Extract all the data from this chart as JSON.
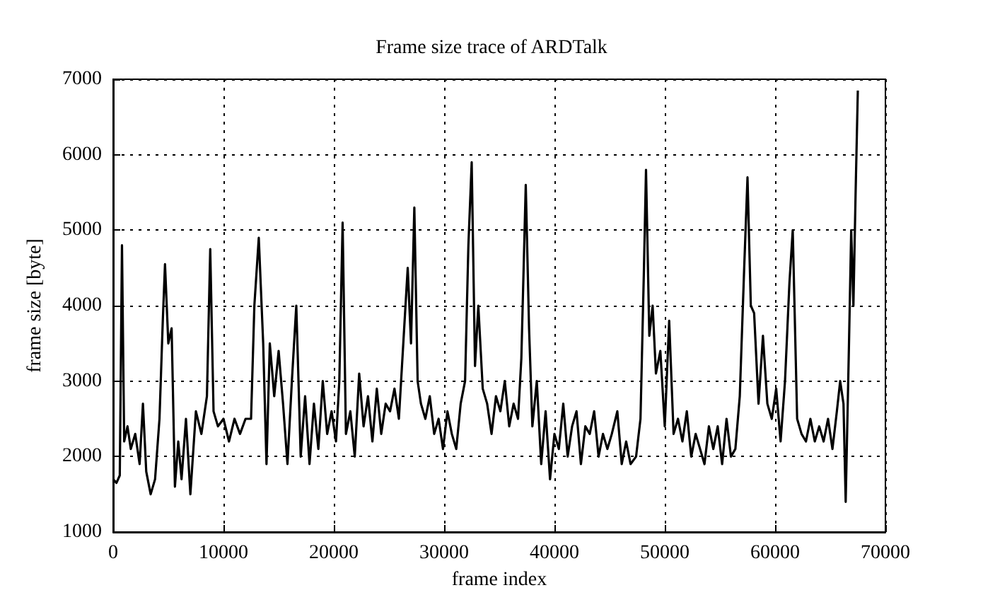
{
  "chart_data": {
    "type": "line",
    "title": "Frame size trace of ARDTalk",
    "xlabel": "frame index",
    "ylabel": "frame size [byte]",
    "xlim": [
      0,
      70000
    ],
    "xticks": [
      0,
      10000,
      20000,
      30000,
      40000,
      50000,
      60000,
      70000
    ],
    "ylim": [
      1000,
      7000
    ],
    "yticks": [
      1000,
      2000,
      3000,
      4000,
      5000,
      6000,
      7000
    ],
    "grid": true,
    "marker": "none",
    "line_style": "solid",
    "series": [
      {
        "color": "#000000",
        "x": [
          0,
          300,
          600,
          800,
          1000,
          1300,
          1600,
          2000,
          2400,
          2700,
          3000,
          3400,
          3800,
          4200,
          4500,
          4700,
          5000,
          5300,
          5600,
          5900,
          6200,
          6600,
          7000,
          7500,
          8000,
          8500,
          8800,
          9100,
          9500,
          10000,
          10500,
          11000,
          11500,
          12000,
          12500,
          12800,
          13200,
          13600,
          13900,
          14200,
          14600,
          15000,
          15400,
          15800,
          16200,
          16600,
          17000,
          17400,
          17800,
          18200,
          18600,
          19000,
          19400,
          19800,
          20200,
          20500,
          20800,
          21100,
          21500,
          21900,
          22300,
          22700,
          23100,
          23500,
          23900,
          24300,
          24700,
          25100,
          25500,
          25900,
          26300,
          26700,
          27000,
          27300,
          27600,
          27900,
          28300,
          28700,
          29100,
          29500,
          29900,
          30300,
          30700,
          31100,
          31500,
          31900,
          32200,
          32500,
          32800,
          33100,
          33500,
          33900,
          34300,
          34700,
          35100,
          35500,
          35900,
          36300,
          36700,
          37000,
          37400,
          37700,
          38000,
          38400,
          38800,
          39200,
          39600,
          40000,
          40400,
          40800,
          41200,
          41600,
          42000,
          42400,
          42800,
          43200,
          43600,
          44000,
          44400,
          44800,
          45200,
          45700,
          46100,
          46500,
          46900,
          47400,
          47800,
          48100,
          48300,
          48600,
          48900,
          49200,
          49600,
          50000,
          50400,
          50800,
          51200,
          51600,
          52000,
          52400,
          52800,
          53200,
          53600,
          54000,
          54400,
          54800,
          55200,
          55600,
          56000,
          56400,
          56800,
          57200,
          57500,
          57800,
          58100,
          58500,
          58900,
          59300,
          59700,
          60100,
          60500,
          60900,
          61300,
          61600,
          62000,
          62400,
          62800,
          63200,
          63600,
          64000,
          64400,
          64800,
          65200,
          65600,
          65900,
          66200,
          66400,
          66700,
          66900,
          67100,
          67300,
          67500
        ],
        "values": [
          1700,
          1650,
          1750,
          4800,
          2200,
          2400,
          2100,
          2300,
          1900,
          2700,
          1800,
          1500,
          1700,
          2500,
          3800,
          4550,
          3500,
          3700,
          1600,
          2200,
          1700,
          2500,
          1500,
          2600,
          2300,
          2800,
          4750,
          2600,
          2400,
          2500,
          2200,
          2500,
          2300,
          2500,
          2500,
          4000,
          4900,
          3500,
          1900,
          3500,
          2800,
          3400,
          2700,
          1900,
          3000,
          4000,
          2000,
          2800,
          1900,
          2700,
          2100,
          3000,
          2300,
          2600,
          2200,
          3000,
          5100,
          2300,
          2600,
          2000,
          3100,
          2400,
          2800,
          2200,
          2900,
          2300,
          2700,
          2600,
          2900,
          2500,
          3500,
          4500,
          3500,
          5300,
          3000,
          2700,
          2500,
          2800,
          2300,
          2500,
          2100,
          2600,
          2300,
          2100,
          2700,
          3000,
          4800,
          5900,
          3200,
          4000,
          2900,
          2700,
          2300,
          2800,
          2600,
          3000,
          2400,
          2700,
          2500,
          3300,
          5600,
          3700,
          2400,
          3000,
          1900,
          2600,
          1700,
          2300,
          2100,
          2700,
          2000,
          2400,
          2600,
          1900,
          2400,
          2300,
          2600,
          2000,
          2300,
          2100,
          2300,
          2600,
          1900,
          2200,
          1900,
          2000,
          2500,
          4400,
          5800,
          3600,
          4000,
          3100,
          3400,
          2400,
          3800,
          2300,
          2500,
          2200,
          2600,
          2000,
          2300,
          2100,
          1900,
          2400,
          2100,
          2400,
          1900,
          2500,
          2000,
          2100,
          2800,
          4500,
          5700,
          4000,
          3900,
          2700,
          3600,
          2700,
          2500,
          2900,
          2200,
          3000,
          4300,
          5000,
          2500,
          2300,
          2200,
          2500,
          2200,
          2400,
          2200,
          2500,
          2100,
          2600,
          3000,
          2700,
          1400,
          3500,
          5000,
          4000,
          5500,
          6850
        ]
      }
    ]
  }
}
